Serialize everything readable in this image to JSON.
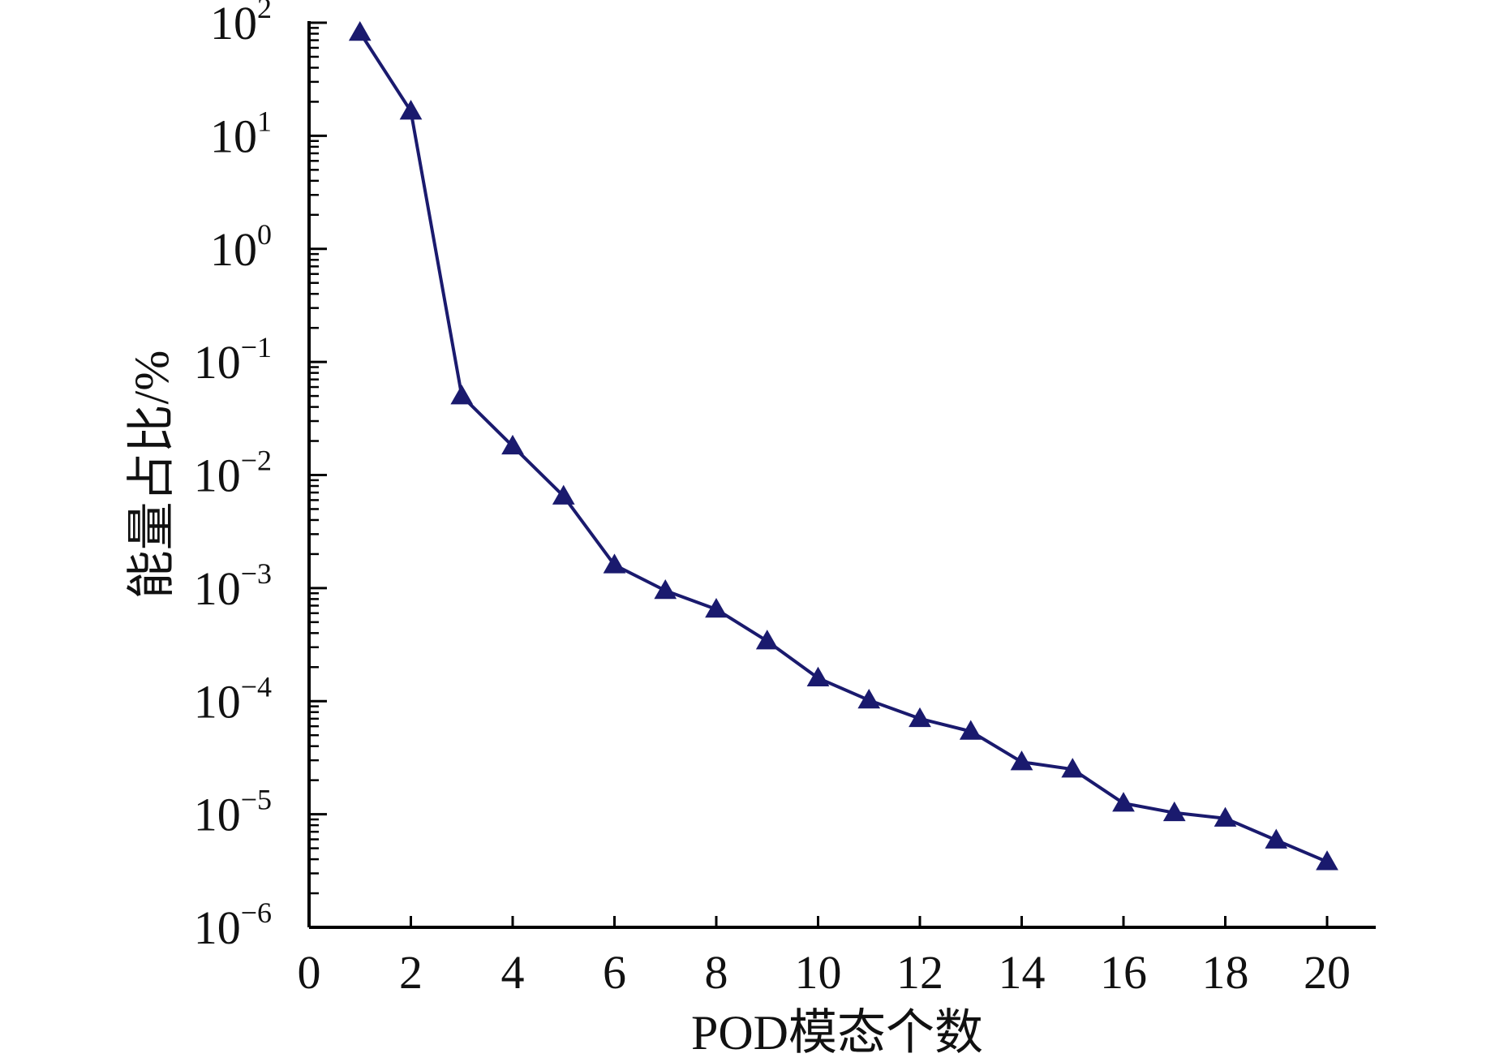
{
  "chart_data": {
    "type": "line",
    "title": "",
    "xlabel": "POD模态个数",
    "ylabel": "能量占比/%",
    "xlim": [
      0,
      21
    ],
    "ylim": [
      1e-06,
      100
    ],
    "y_scale": "log",
    "grid": false,
    "legend": "none",
    "x_ticks": [
      0,
      2,
      4,
      6,
      8,
      10,
      12,
      14,
      16,
      18,
      20
    ],
    "x_tick_labels": [
      "0",
      "2",
      "4",
      "6",
      "8",
      "10",
      "12",
      "14",
      "16",
      "18",
      "20"
    ],
    "y_ticks": [
      {
        "base": "10",
        "exp": "2",
        "value": 100
      },
      {
        "base": "10",
        "exp": "1",
        "value": 10
      },
      {
        "base": "10",
        "exp": "0",
        "value": 1
      },
      {
        "base": "10",
        "exp": "−1",
        "value": 0.1
      },
      {
        "base": "10",
        "exp": "−2",
        "value": 0.01
      },
      {
        "base": "10",
        "exp": "−3",
        "value": 0.001
      },
      {
        "base": "10",
        "exp": "−4",
        "value": 0.0001
      },
      {
        "base": "10",
        "exp": "−5",
        "value": 1e-05
      },
      {
        "base": "10",
        "exp": "−6",
        "value": 1e-06
      }
    ],
    "marker": "triangle",
    "series": [
      {
        "color": "#1a1a6e",
        "x": [
          1,
          2,
          3,
          4,
          5,
          6,
          7,
          8,
          9,
          10,
          11,
          12,
          13,
          14,
          15,
          16,
          17,
          18,
          19,
          20
        ],
        "y": [
          82,
          16.5,
          0.05,
          0.018,
          0.0065,
          0.0016,
          0.00095,
          0.00065,
          0.00034,
          0.00016,
          0.000102,
          7e-05,
          5.4e-05,
          2.9e-05,
          2.5e-05,
          1.25e-05,
          1.03e-05,
          9.2e-06,
          5.9e-06,
          3.8e-06
        ]
      }
    ]
  }
}
